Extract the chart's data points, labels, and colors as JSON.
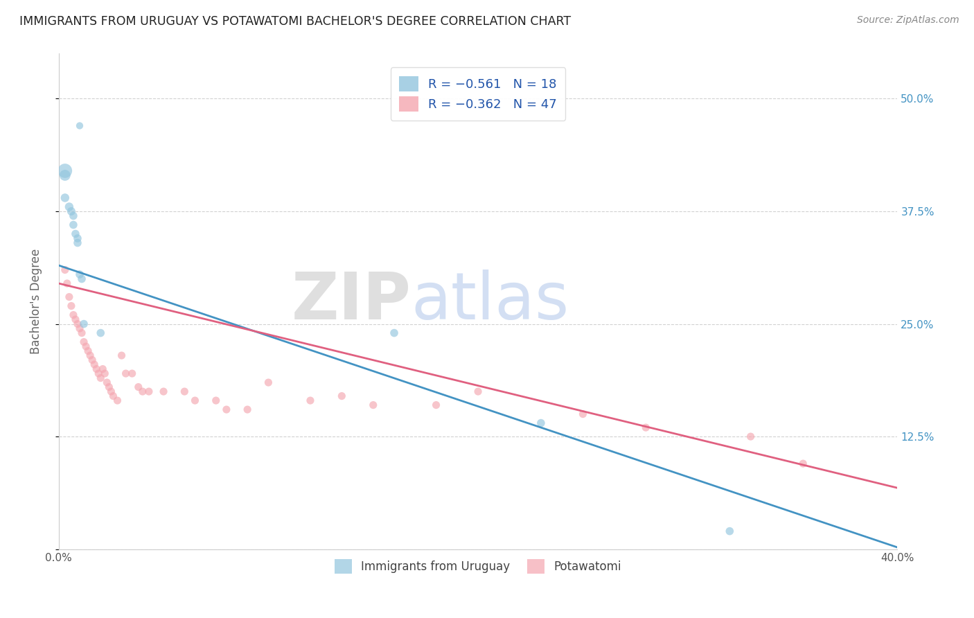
{
  "title": "IMMIGRANTS FROM URUGUAY VS POTAWATOMI BACHELOR'S DEGREE CORRELATION CHART",
  "source": "Source: ZipAtlas.com",
  "ylabel": "Bachelor's Degree",
  "watermark_zip": "ZIP",
  "watermark_atlas": "atlas",
  "legend_blue_r": "R = −0.561",
  "legend_blue_n": "N = 18",
  "legend_pink_r": "R = −0.362",
  "legend_pink_n": "N = 47",
  "blue_color": "#92c5de",
  "pink_color": "#f4a6b0",
  "blue_line_color": "#4393c3",
  "pink_line_color": "#e06080",
  "xlim": [
    0.0,
    0.4
  ],
  "ylim": [
    0.0,
    0.55
  ],
  "blue_scatter_x": [
    0.01,
    0.003,
    0.003,
    0.003,
    0.005,
    0.006,
    0.007,
    0.007,
    0.008,
    0.009,
    0.009,
    0.01,
    0.011,
    0.012,
    0.02,
    0.16,
    0.23,
    0.32
  ],
  "blue_scatter_y": [
    0.47,
    0.42,
    0.415,
    0.39,
    0.38,
    0.375,
    0.37,
    0.36,
    0.35,
    0.345,
    0.34,
    0.305,
    0.3,
    0.25,
    0.24,
    0.24,
    0.14,
    0.02
  ],
  "blue_scatter_size": [
    55,
    220,
    130,
    80,
    80,
    75,
    70,
    70,
    70,
    70,
    70,
    70,
    70,
    70,
    70,
    70,
    70,
    70
  ],
  "pink_scatter_x": [
    0.003,
    0.004,
    0.005,
    0.006,
    0.007,
    0.008,
    0.009,
    0.01,
    0.011,
    0.012,
    0.013,
    0.014,
    0.015,
    0.016,
    0.017,
    0.018,
    0.019,
    0.02,
    0.021,
    0.022,
    0.023,
    0.024,
    0.025,
    0.026,
    0.028,
    0.03,
    0.032,
    0.035,
    0.038,
    0.04,
    0.043,
    0.05,
    0.06,
    0.065,
    0.075,
    0.08,
    0.09,
    0.1,
    0.12,
    0.135,
    0.15,
    0.18,
    0.2,
    0.25,
    0.28,
    0.33,
    0.355
  ],
  "pink_scatter_y": [
    0.31,
    0.295,
    0.28,
    0.27,
    0.26,
    0.255,
    0.25,
    0.245,
    0.24,
    0.23,
    0.225,
    0.22,
    0.215,
    0.21,
    0.205,
    0.2,
    0.195,
    0.19,
    0.2,
    0.195,
    0.185,
    0.18,
    0.175,
    0.17,
    0.165,
    0.215,
    0.195,
    0.195,
    0.18,
    0.175,
    0.175,
    0.175,
    0.175,
    0.165,
    0.165,
    0.155,
    0.155,
    0.185,
    0.165,
    0.17,
    0.16,
    0.16,
    0.175,
    0.15,
    0.135,
    0.125,
    0.095
  ],
  "pink_scatter_size": [
    65,
    65,
    65,
    65,
    65,
    65,
    65,
    65,
    65,
    65,
    65,
    65,
    65,
    65,
    65,
    65,
    65,
    65,
    65,
    65,
    65,
    65,
    65,
    65,
    65,
    65,
    65,
    65,
    65,
    65,
    65,
    65,
    65,
    65,
    65,
    65,
    65,
    65,
    65,
    65,
    65,
    65,
    65,
    65,
    65,
    65,
    65
  ],
  "blue_line_x0": 0.0,
  "blue_line_y0": 0.315,
  "blue_line_x1": 0.4,
  "blue_line_y1": 0.002,
  "pink_line_x0": 0.0,
  "pink_line_y0": 0.295,
  "pink_line_x1": 0.4,
  "pink_line_y1": 0.068
}
